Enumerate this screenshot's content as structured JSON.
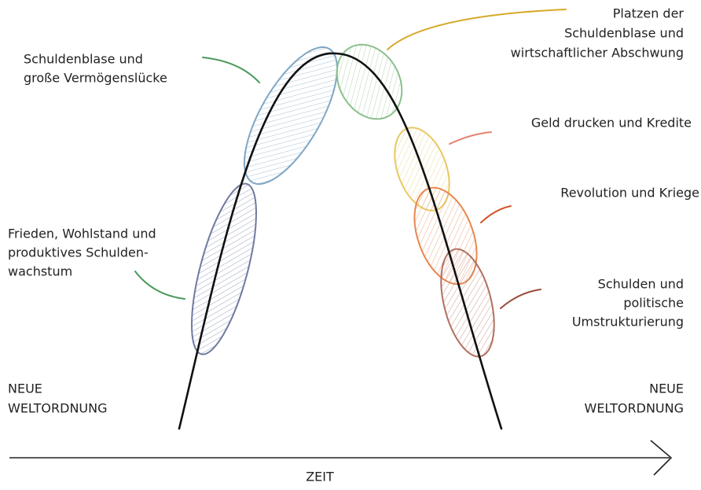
{
  "stages": [
    {
      "lines": [
        "Frieden, Wohlstand und",
        "produktives Schulden-",
        "wachstum"
      ],
      "color": "#6f7aa0"
    },
    {
      "lines": [
        "Schuldenblase und",
        "große Vermögenslücke"
      ],
      "color": "#7fa6c4"
    },
    {
      "lines": [
        "Platzen der",
        "Schuldenblase und",
        "wirtschaftlicher Abschwung"
      ],
      "color": "#8cc08c"
    },
    {
      "lines": [
        "Geld drucken und Kredite"
      ],
      "color": "#e8c862"
    },
    {
      "lines": [
        "Revolution und Kriege"
      ],
      "color": "#e8874f"
    },
    {
      "lines": [
        "Schulden und",
        "politische",
        "Umstrukturierung"
      ],
      "color": "#b07060"
    }
  ],
  "left_end": [
    "NEUE",
    "WELTORDNUNG"
  ],
  "right_end": [
    "NEUE",
    "WELTORDNUNG"
  ],
  "axis_label": "ZEIT"
}
